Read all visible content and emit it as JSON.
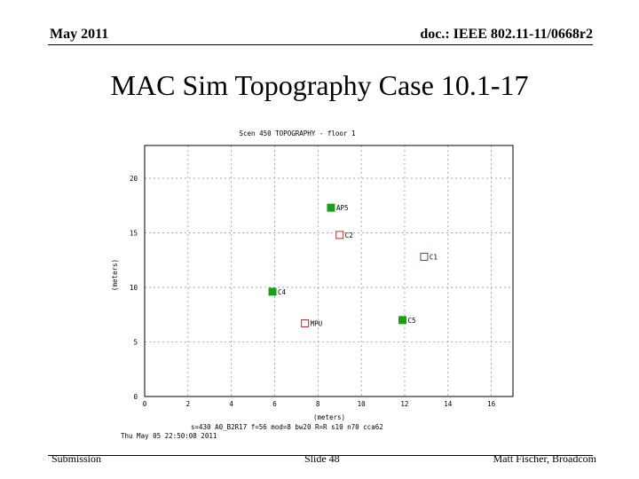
{
  "header": {
    "date": "May 2011",
    "doc": "doc.: IEEE 802.11-11/0668r2"
  },
  "slide": {
    "title": "MAC Sim Topography Case 10.1-17"
  },
  "footer": {
    "left": "Submission",
    "center": "Slide 48",
    "right": "Matt Fischer, Broadcom"
  },
  "chart_data": {
    "type": "scatter",
    "title": "Scen 450 TOPOGRAPHY - floor 1",
    "xlabel": "(meters)",
    "ylabel": "(meters)",
    "xlim": [
      0,
      17
    ],
    "ylim": [
      0,
      23
    ],
    "xticks": [
      0,
      2,
      4,
      6,
      8,
      10,
      12,
      14,
      16
    ],
    "yticks": [
      0,
      5,
      10,
      15,
      20
    ],
    "grid": true,
    "points": [
      {
        "label": "AP5",
        "x": 8.6,
        "y": 17.3,
        "filled": true,
        "color": "#18a018"
      },
      {
        "label": "C2",
        "x": 9.0,
        "y": 14.8,
        "filled": false,
        "color": "#b03030"
      },
      {
        "label": "C1",
        "x": 12.9,
        "y": 12.8,
        "filled": false,
        "color": "#b03030"
      },
      {
        "label": "C4",
        "x": 5.9,
        "y": 9.6,
        "filled": true,
        "color": "#18a018"
      },
      {
        "label": "MPU",
        "x": 7.4,
        "y": 6.7,
        "filled": false,
        "color": "#b03030"
      },
      {
        "label": "C5",
        "x": 11.9,
        "y": 7.0,
        "filled": true,
        "color": "#18a018"
      }
    ],
    "footnote": "s=430 A0_B2R17 f=56 mod=8 bw20 R=R  s10 n70 cca62",
    "timestamp": "Thu May 05 22:50:08 2011"
  }
}
